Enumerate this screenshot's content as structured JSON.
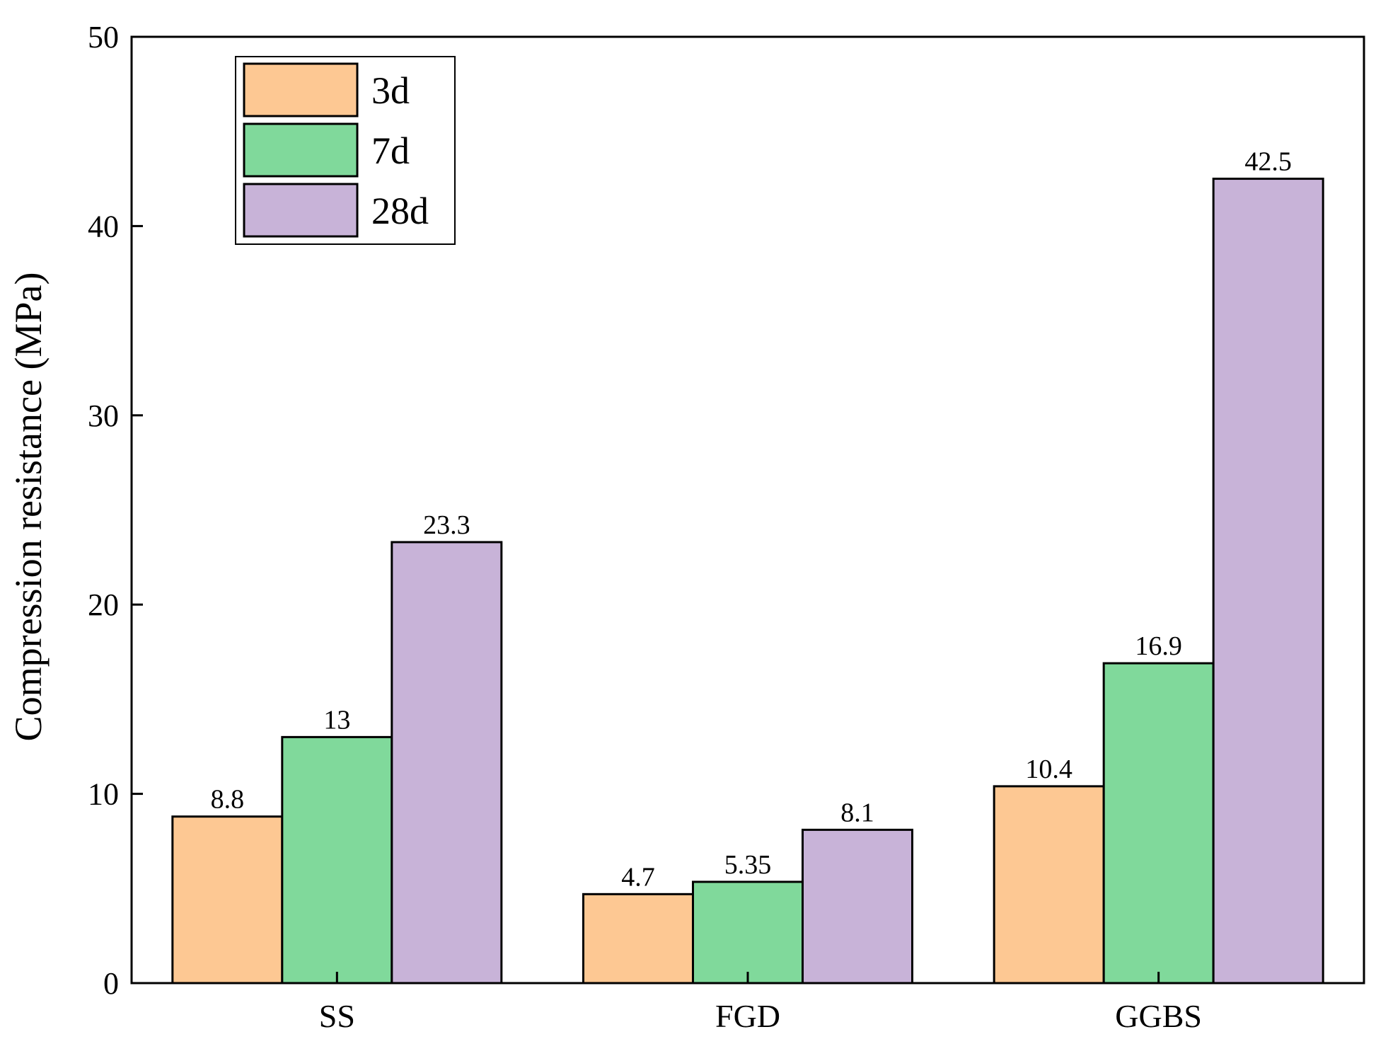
{
  "chart_data": {
    "type": "bar",
    "title": "",
    "xlabel": "",
    "ylabel": "Compression resistance (MPa)",
    "ylim": [
      0,
      50
    ],
    "yticks": [
      0,
      10,
      20,
      30,
      40,
      50
    ],
    "categories": [
      "SS",
      "FGD",
      "GGBS"
    ],
    "series": [
      {
        "name": "3d",
        "color": "#FDC893",
        "values": [
          8.8,
          4.7,
          10.4
        ],
        "labels": [
          "8.8",
          "4.7",
          "10.4"
        ]
      },
      {
        "name": "7d",
        "color": "#80D99B",
        "values": [
          13,
          5.35,
          16.9
        ],
        "labels": [
          "13",
          "5.35",
          "16.9"
        ]
      },
      {
        "name": "28d",
        "color": "#C8B3D8",
        "values": [
          23.3,
          8.1,
          42.5
        ],
        "labels": [
          "23.3",
          "8.1",
          "42.5"
        ]
      }
    ],
    "legend": {
      "position": "top-left",
      "entries": [
        "3d",
        "7d",
        "28d"
      ]
    },
    "grid": false
  }
}
